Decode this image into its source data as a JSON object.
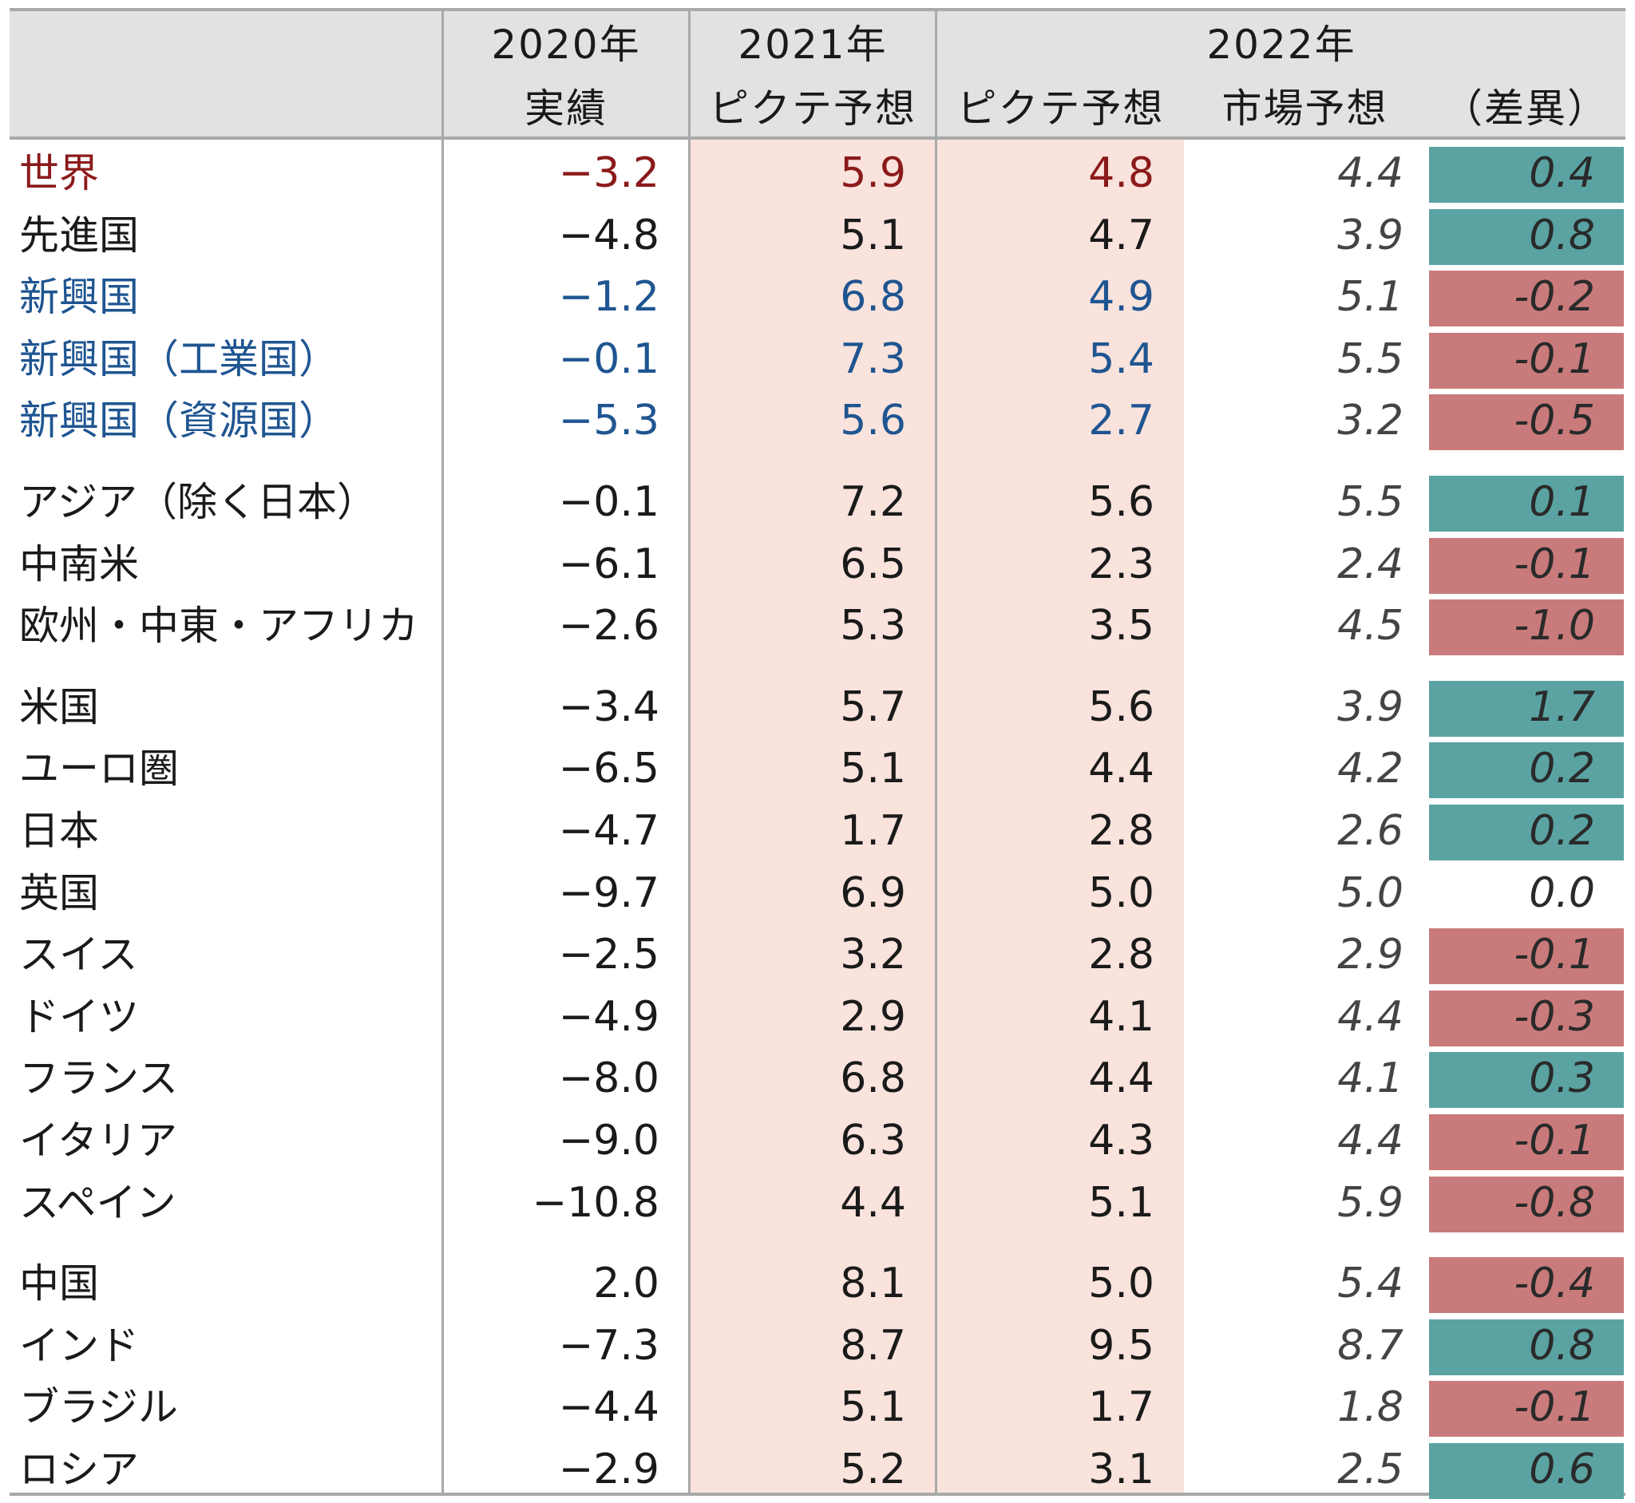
{
  "colors": {
    "world": "#8b1a1a",
    "emerging": "#1f5591",
    "default": "#1a1a1a",
    "positive": "#5ba3a3",
    "negative": "#c97b7b",
    "highlight_column": "#f9e3dc",
    "header_bg": "#e2e2e2"
  },
  "headers": {
    "col2020_year": "2020年",
    "col2020_sub": "実績",
    "col2021_year": "2021年",
    "col2021_sub": "ピクテ予想",
    "col2022_year": "2022年",
    "col2022_pictet": "ピクテ予想",
    "col2022_market": "市場予想",
    "col2022_diff": "（差異）"
  },
  "chart_data": {
    "type": "table",
    "columns": [
      "2020年 実績",
      "2021年 ピクテ予想",
      "2022年 ピクテ予想",
      "2022年 市場予想",
      "2022年 （差異）"
    ],
    "groups": [
      {
        "rows": [
          {
            "label": "世界",
            "style": "world",
            "actual_2020": "−3.2",
            "pictet_2021": "5.9",
            "pictet_2022": "4.8",
            "market_2022": "4.4",
            "diff_2022": "0.4",
            "diff_sign": "positive"
          },
          {
            "label": "先進国",
            "style": "default",
            "actual_2020": "−4.8",
            "pictet_2021": "5.1",
            "pictet_2022": "4.7",
            "market_2022": "3.9",
            "diff_2022": "0.8",
            "diff_sign": "positive"
          },
          {
            "label": "新興国",
            "style": "emerging",
            "actual_2020": "−1.2",
            "pictet_2021": "6.8",
            "pictet_2022": "4.9",
            "market_2022": "5.1",
            "diff_2022": "-0.2",
            "diff_sign": "negative"
          },
          {
            "label": "新興国（工業国）",
            "style": "emerging",
            "actual_2020": "−0.1",
            "pictet_2021": "7.3",
            "pictet_2022": "5.4",
            "market_2022": "5.5",
            "diff_2022": "-0.1",
            "diff_sign": "negative"
          },
          {
            "label": "新興国（資源国）",
            "style": "emerging",
            "actual_2020": "−5.3",
            "pictet_2021": "5.6",
            "pictet_2022": "2.7",
            "market_2022": "3.2",
            "diff_2022": "-0.5",
            "diff_sign": "negative"
          }
        ]
      },
      {
        "rows": [
          {
            "label": "アジア（除く日本）",
            "style": "default",
            "actual_2020": "−0.1",
            "pictet_2021": "7.2",
            "pictet_2022": "5.6",
            "market_2022": "5.5",
            "diff_2022": "0.1",
            "diff_sign": "positive"
          },
          {
            "label": "中南米",
            "style": "default",
            "actual_2020": "−6.1",
            "pictet_2021": "6.5",
            "pictet_2022": "2.3",
            "market_2022": "2.4",
            "diff_2022": "-0.1",
            "diff_sign": "negative"
          },
          {
            "label": "欧州・中東・アフリカ",
            "style": "default",
            "actual_2020": "−2.6",
            "pictet_2021": "5.3",
            "pictet_2022": "3.5",
            "market_2022": "4.5",
            "diff_2022": "-1.0",
            "diff_sign": "negative"
          }
        ]
      },
      {
        "rows": [
          {
            "label": "米国",
            "style": "default",
            "actual_2020": "−3.4",
            "pictet_2021": "5.7",
            "pictet_2022": "5.6",
            "market_2022": "3.9",
            "diff_2022": "1.7",
            "diff_sign": "positive"
          },
          {
            "label": "ユーロ圏",
            "style": "default",
            "actual_2020": "−6.5",
            "pictet_2021": "5.1",
            "pictet_2022": "4.4",
            "market_2022": "4.2",
            "diff_2022": "0.2",
            "diff_sign": "positive"
          },
          {
            "label": "日本",
            "style": "default",
            "actual_2020": "−4.7",
            "pictet_2021": "1.7",
            "pictet_2022": "2.8",
            "market_2022": "2.6",
            "diff_2022": "0.2",
            "diff_sign": "positive"
          },
          {
            "label": "英国",
            "style": "default",
            "actual_2020": "−9.7",
            "pictet_2021": "6.9",
            "pictet_2022": "5.0",
            "market_2022": "5.0",
            "diff_2022": "0.0",
            "diff_sign": "zero"
          },
          {
            "label": "スイス",
            "style": "default",
            "actual_2020": "−2.5",
            "pictet_2021": "3.2",
            "pictet_2022": "2.8",
            "market_2022": "2.9",
            "diff_2022": "-0.1",
            "diff_sign": "negative"
          },
          {
            "label": "ドイツ",
            "style": "default",
            "actual_2020": "−4.9",
            "pictet_2021": "2.9",
            "pictet_2022": "4.1",
            "market_2022": "4.4",
            "diff_2022": "-0.3",
            "diff_sign": "negative"
          },
          {
            "label": "フランス",
            "style": "default",
            "actual_2020": "−8.0",
            "pictet_2021": "6.8",
            "pictet_2022": "4.4",
            "market_2022": "4.1",
            "diff_2022": "0.3",
            "diff_sign": "positive"
          },
          {
            "label": "イタリア",
            "style": "default",
            "actual_2020": "−9.0",
            "pictet_2021": "6.3",
            "pictet_2022": "4.3",
            "market_2022": "4.4",
            "diff_2022": "-0.1",
            "diff_sign": "negative"
          },
          {
            "label": "スペイン",
            "style": "default",
            "actual_2020": "−10.8",
            "pictet_2021": "4.4",
            "pictet_2022": "5.1",
            "market_2022": "5.9",
            "diff_2022": "-0.8",
            "diff_sign": "negative"
          }
        ]
      },
      {
        "rows": [
          {
            "label": "中国",
            "style": "default",
            "actual_2020": "2.0",
            "pictet_2021": "8.1",
            "pictet_2022": "5.0",
            "market_2022": "5.4",
            "diff_2022": "-0.4",
            "diff_sign": "negative"
          },
          {
            "label": "インド",
            "style": "default",
            "actual_2020": "−7.3",
            "pictet_2021": "8.7",
            "pictet_2022": "9.5",
            "market_2022": "8.7",
            "diff_2022": "0.8",
            "diff_sign": "positive"
          },
          {
            "label": "ブラジル",
            "style": "default",
            "actual_2020": "−4.4",
            "pictet_2021": "5.1",
            "pictet_2022": "1.7",
            "market_2022": "1.8",
            "diff_2022": "-0.1",
            "diff_sign": "negative"
          },
          {
            "label": "ロシア",
            "style": "default",
            "actual_2020": "−2.9",
            "pictet_2021": "5.2",
            "pictet_2022": "3.1",
            "market_2022": "2.5",
            "diff_2022": "0.6",
            "diff_sign": "positive"
          }
        ]
      }
    ]
  }
}
